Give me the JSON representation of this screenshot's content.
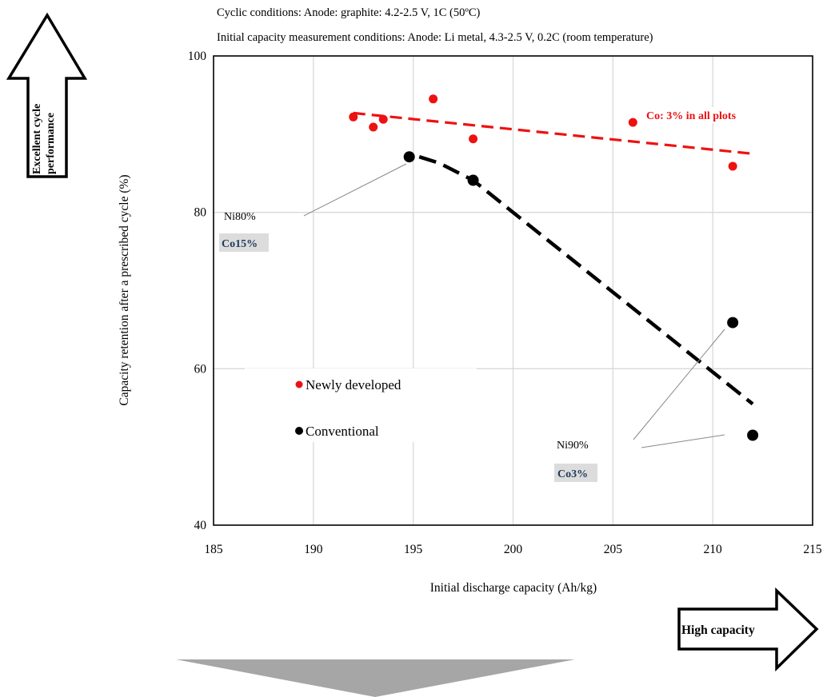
{
  "header": {
    "cyclic_conditions": "Cyclic conditions: Anode: graphite: 4.2-2.5 V, 1C (50ºC)",
    "initial_conditions": "Initial capacity measurement conditions: Anode: Li metal, 4.3-2.5 V, 0.2C (room temperature)"
  },
  "arrows": {
    "up_line1": "Excellent cycle",
    "up_line2": "performance",
    "right_label": "High capacity"
  },
  "annotations": {
    "co_all": "Co: 3% in all plots",
    "ni80": "Ni80%",
    "co15": "Co15%",
    "ni90": "Ni90%",
    "co3": "Co3%"
  },
  "legend": {
    "newly": "Newly developed",
    "conventional": "Conventional"
  },
  "colors": {
    "newly": "#ee1111",
    "conventional": "#000000",
    "grid": "#d9d9d9",
    "highlight_box": "#dcdcdc",
    "highlight_text": "#1f3b5c",
    "down_arrow": "#a6a6a6"
  },
  "chart_data": {
    "type": "scatter",
    "xlabel": "Initial discharge capacity (Ah/kg)",
    "ylabel": "Capacity retention after a prescribed cycle (%)",
    "xlim": [
      185,
      215
    ],
    "ylim": [
      40,
      100
    ],
    "xticks": [
      185,
      190,
      195,
      200,
      205,
      210,
      215
    ],
    "yticks": [
      40,
      60,
      80,
      100
    ],
    "grid": true,
    "series": [
      {
        "name": "Newly developed",
        "points": [
          {
            "x": 192.0,
            "y": 92.2
          },
          {
            "x": 193.0,
            "y": 90.9
          },
          {
            "x": 193.5,
            "y": 91.9
          },
          {
            "x": 196.0,
            "y": 94.5
          },
          {
            "x": 198.0,
            "y": 89.4
          },
          {
            "x": 206.0,
            "y": 91.5
          },
          {
            "x": 211.0,
            "y": 85.9
          }
        ],
        "trend": [
          {
            "x": 192.0,
            "y": 92.7
          },
          {
            "x": 212.0,
            "y": 87.5
          }
        ]
      },
      {
        "name": "Conventional",
        "points": [
          {
            "x": 194.8,
            "y": 87.1
          },
          {
            "x": 198.0,
            "y": 84.1
          },
          {
            "x": 211.0,
            "y": 65.9
          },
          {
            "x": 212.0,
            "y": 51.5
          }
        ],
        "trend": [
          {
            "x": 195.3,
            "y": 87.1
          },
          {
            "x": 196.3,
            "y": 86.3
          },
          {
            "x": 198.0,
            "y": 84.1
          },
          {
            "x": 200.0,
            "y": 80.0
          },
          {
            "x": 212.0,
            "y": 55.5
          }
        ]
      }
    ]
  }
}
